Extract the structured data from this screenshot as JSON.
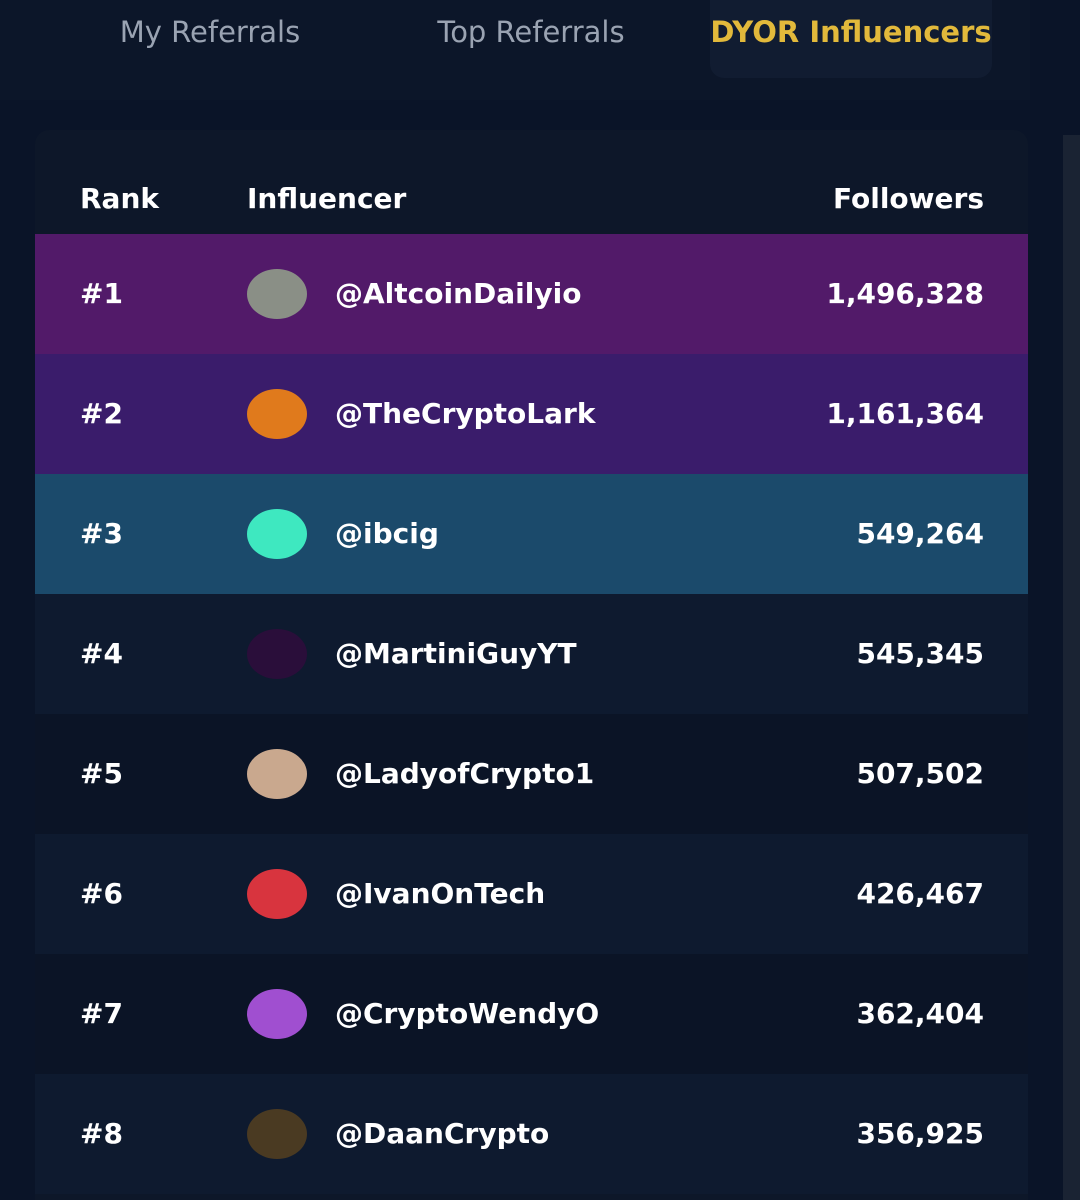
{
  "tabs": [
    "My Referrals",
    "Top Referrals",
    "DYOR Influencers"
  ],
  "active_tab": 2,
  "table": {
    "headers": [
      "Rank",
      "Influencer",
      "Followers"
    ],
    "rows": [
      [
        "#1",
        "@AltcoinDailyio",
        "1,496,328"
      ],
      [
        "#2",
        "@TheCryptoLark",
        "1,161,364"
      ],
      [
        "#3",
        "@ibcig",
        "549,264"
      ],
      [
        "#4",
        "@MartiniGuyYT",
        "545,345"
      ],
      [
        "#5",
        "@LadyofCrypto1",
        "507,502"
      ],
      [
        "#6",
        "@IvanOnTech",
        "426,467"
      ],
      [
        "#7",
        "@CryptoWendyO",
        "362,404"
      ],
      [
        "#8",
        "@DaanCrypto",
        "356,925"
      ]
    ]
  }
}
